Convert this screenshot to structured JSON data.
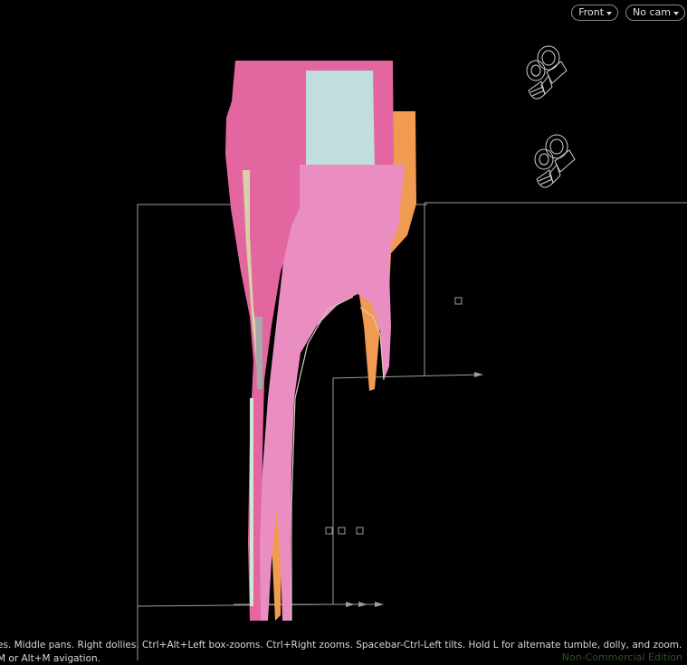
{
  "viewport": {
    "view_menu": "Front",
    "camera_menu": "No cam",
    "hint": "es. Middle pans. Right dollies. Ctrl+Alt+Left box-zooms. Ctrl+Right zooms. Spacebar-Ctrl-Left tilts. Hold L for alternate tumble, dolly, and zoom. M or Alt+M avigation.",
    "edition": "Non-Commercial Edition",
    "icons": [
      "camera-icon",
      "dropdown-caret-icon"
    ],
    "colors": {
      "background": "#000000",
      "pink_shape": "#e466a0",
      "light_pink_shape": "#ea8ec2",
      "cyan_shape": "#bfdedd",
      "orange_shape": "#f19b52",
      "guide_lines": "#9a9a9a"
    }
  }
}
